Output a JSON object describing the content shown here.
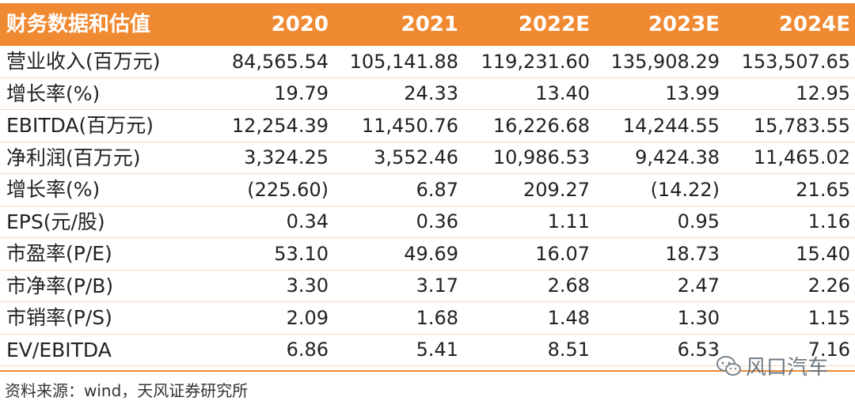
{
  "table": {
    "title": "财务数据和估值",
    "columns": [
      "2020",
      "2021",
      "2022E",
      "2023E",
      "2024E"
    ],
    "rows": [
      {
        "label": "营业收入(百万元)",
        "values": [
          "84,565.54",
          "105,141.88",
          "119,231.60",
          "135,908.29",
          "153,507.65"
        ]
      },
      {
        "label": "增长率(%)",
        "values": [
          "19.79",
          "24.33",
          "13.40",
          "13.99",
          "12.95"
        ]
      },
      {
        "label": "EBITDA(百万元)",
        "values": [
          "12,254.39",
          "11,450.76",
          "16,226.68",
          "14,244.55",
          "15,783.55"
        ]
      },
      {
        "label": "净利润(百万元)",
        "values": [
          "3,324.25",
          "3,552.46",
          "10,986.53",
          "9,424.38",
          "11,465.02"
        ]
      },
      {
        "label": "增长率(%)",
        "values": [
          "(225.60)",
          "6.87",
          "209.27",
          "(14.22)",
          "21.65"
        ]
      },
      {
        "label": "EPS(元/股)",
        "values": [
          "0.34",
          "0.36",
          "1.11",
          "0.95",
          "1.16"
        ]
      },
      {
        "label": "市盈率(P/E)",
        "values": [
          "53.10",
          "49.69",
          "16.07",
          "18.73",
          "15.40"
        ]
      },
      {
        "label": "市净率(P/B)",
        "values": [
          "3.30",
          "3.17",
          "2.68",
          "2.47",
          "2.26"
        ]
      },
      {
        "label": "市销率(P/S)",
        "values": [
          "2.09",
          "1.68",
          "1.48",
          "1.30",
          "1.15"
        ]
      },
      {
        "label": "EV/EBITDA",
        "values": [
          "6.86",
          "5.41",
          "8.51",
          "6.53",
          "7.16"
        ]
      }
    ]
  },
  "source": "资料来源：wind，天风证券研究所",
  "watermark": {
    "text": "风口汽车",
    "icon": "wechat-icon"
  },
  "colors": {
    "header_bg": "#f08a32",
    "header_text": "#ffffff",
    "row_divider": "#f3d7c2"
  }
}
